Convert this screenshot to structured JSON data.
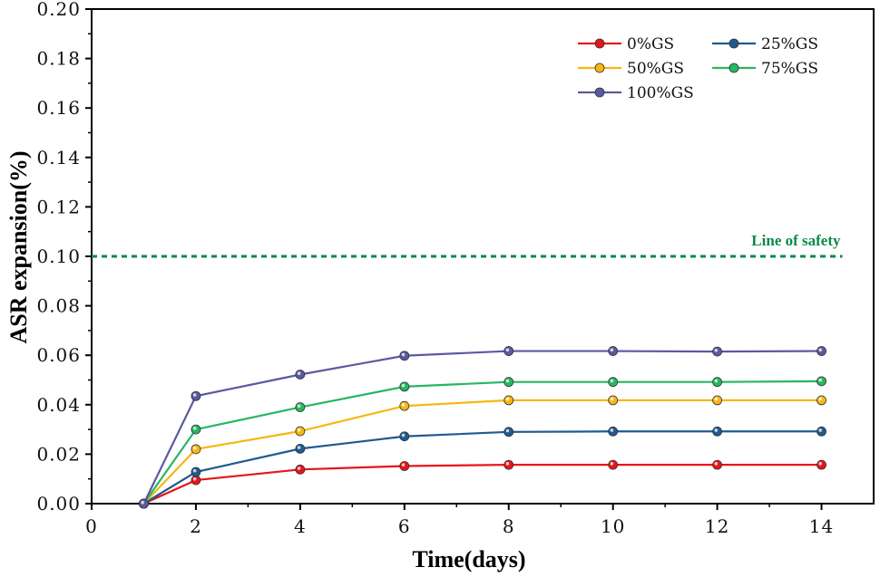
{
  "chart_data": {
    "type": "line",
    "xlabel": "Time(days)",
    "ylabel": "ASR expansion(%)",
    "xlim": [
      0,
      15
    ],
    "ylim": [
      0,
      0.2
    ],
    "xticks": [
      0,
      2,
      4,
      6,
      8,
      10,
      12,
      14
    ],
    "xtick_labels": [
      "0",
      "2",
      "4",
      "6",
      "8",
      "10",
      "12",
      "14"
    ],
    "yticks": [
      0,
      0.02,
      0.04,
      0.06,
      0.08,
      0.1,
      0.12,
      0.14,
      0.16,
      0.18,
      0.2
    ],
    "ytick_labels": [
      "0.00",
      "0.02",
      "0.04",
      "0.06",
      "0.08",
      "0.10",
      "0.12",
      "0.14",
      "0.16",
      "0.18",
      "0.20"
    ],
    "x": [
      1,
      2,
      4,
      6,
      8,
      10,
      12,
      14
    ],
    "series": [
      {
        "name": "0%GS",
        "color": "#e8141a",
        "values": [
          0,
          0.0095,
          0.0138,
          0.0152,
          0.0157,
          0.0157,
          0.0157,
          0.0157
        ]
      },
      {
        "name": "25%GS",
        "color": "#1f5a91",
        "values": [
          0,
          0.0128,
          0.0222,
          0.0272,
          0.029,
          0.0292,
          0.0292,
          0.0292
        ]
      },
      {
        "name": "50%GS",
        "color": "#f6b712",
        "values": [
          0,
          0.022,
          0.0293,
          0.0395,
          0.0418,
          0.0418,
          0.0418,
          0.0418
        ]
      },
      {
        "name": "75%GS",
        "color": "#27b760",
        "values": [
          0,
          0.03,
          0.039,
          0.0473,
          0.0492,
          0.0492,
          0.0492,
          0.0495
        ]
      },
      {
        "name": "100%GS",
        "color": "#5a5aa1",
        "values": [
          0,
          0.0435,
          0.0522,
          0.0598,
          0.0617,
          0.0617,
          0.0615,
          0.0617
        ]
      }
    ],
    "reference_line": {
      "y": 0.1,
      "label": "Line of safety",
      "color": "#0a8a4a",
      "style": "dashed",
      "x_start": 0,
      "x_end": 14.4
    },
    "legend": {
      "placement": "top-right",
      "columns": 2
    },
    "grid": false
  }
}
